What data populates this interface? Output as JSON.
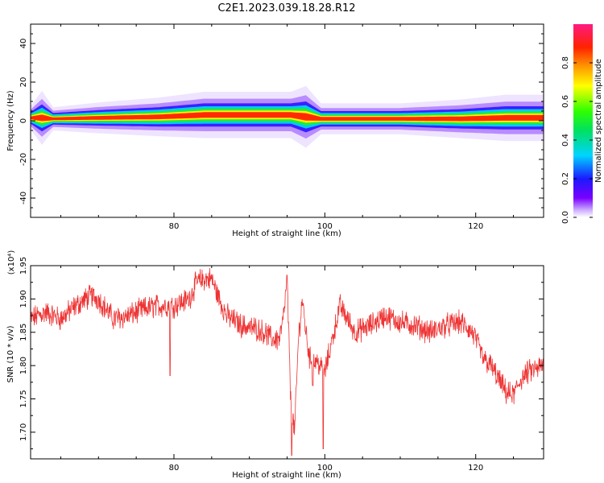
{
  "figure": {
    "title": "C2E1.2023.039.18.28.R12"
  },
  "colorbar": {
    "label": "Normalized spectral amplitude",
    "ticks": [
      "0.0",
      "0.2",
      "0.4",
      "0.6",
      "0.8"
    ]
  },
  "colors": {
    "snr_line": "#ee3333",
    "frame": "#000000"
  },
  "chart_data": [
    {
      "type": "heatmap",
      "title": "C2E1.2023.039.18.28.R12",
      "xlabel": "Height of straight line (km)",
      "ylabel": "Frequency (Hz)",
      "xlim": [
        61,
        129
      ],
      "ylim": [
        -50,
        50
      ],
      "x_ticks": [
        80,
        100,
        120
      ],
      "y_ticks": [
        -40,
        -20,
        0,
        20,
        40
      ],
      "colorbar_range": [
        0.0,
        1.0
      ],
      "ridge": [
        {
          "x": 61,
          "f": 1.5,
          "w": 3
        },
        {
          "x": 62.5,
          "f": 1.5,
          "w": 7
        },
        {
          "x": 64,
          "f": 1.0,
          "w": 3
        },
        {
          "x": 70,
          "f": 1.5,
          "w": 4
        },
        {
          "x": 78,
          "f": 2.0,
          "w": 5
        },
        {
          "x": 84,
          "f": 3.0,
          "w": 6
        },
        {
          "x": 90,
          "f": 3.0,
          "w": 6
        },
        {
          "x": 95.5,
          "f": 3.0,
          "w": 6
        },
        {
          "x": 97.5,
          "f": 2.0,
          "w": 8
        },
        {
          "x": 99.5,
          "f": 1.0,
          "w": 4
        },
        {
          "x": 110,
          "f": 1.0,
          "w": 4
        },
        {
          "x": 118,
          "f": 1.0,
          "w": 5
        },
        {
          "x": 124,
          "f": 1.5,
          "w": 6
        },
        {
          "x": 129,
          "f": 1.5,
          "w": 6
        }
      ]
    },
    {
      "type": "line",
      "xlabel": "Height of straight line (km)",
      "ylabel": "SNR (10 * v/v)",
      "y_multiplier": "(x10⁴)",
      "xlim": [
        61,
        129
      ],
      "ylim": [
        1.66,
        1.95
      ],
      "x_ticks": [
        80,
        100,
        120
      ],
      "y_ticks": [
        "1.70",
        "1.75",
        "1.80",
        "1.85",
        "1.90",
        "1.95"
      ],
      "series": [
        {
          "x": [
            61,
            63,
            65,
            67,
            69,
            70,
            72,
            74,
            76,
            78,
            79.5,
            80,
            82,
            83,
            84,
            85,
            86,
            87,
            89,
            91,
            92,
            93,
            94,
            94.5,
            95,
            95.5,
            96,
            96.5,
            97,
            97.5,
            98,
            99,
            100,
            101,
            102,
            104,
            106,
            108,
            110,
            112,
            114,
            116,
            118,
            119.5,
            120,
            121,
            122,
            123,
            124,
            125,
            126,
            127,
            128,
            129
          ],
          "y": [
            1.87,
            1.88,
            1.87,
            1.89,
            1.905,
            1.9,
            1.87,
            1.875,
            1.885,
            1.89,
            1.89,
            1.89,
            1.9,
            1.925,
            1.93,
            1.93,
            1.9,
            1.875,
            1.86,
            1.855,
            1.85,
            1.84,
            1.84,
            1.87,
            1.93,
            1.74,
            1.7,
            1.84,
            1.9,
            1.85,
            1.81,
            1.805,
            1.79,
            1.84,
            1.89,
            1.85,
            1.86,
            1.875,
            1.865,
            1.86,
            1.85,
            1.86,
            1.865,
            1.85,
            1.84,
            1.81,
            1.8,
            1.78,
            1.76,
            1.755,
            1.78,
            1.79,
            1.795,
            1.8
          ]
        }
      ],
      "spikes": [
        {
          "x": 79.5,
          "y": 1.785
        },
        {
          "x": 95.6,
          "y": 1.665
        },
        {
          "x": 99.8,
          "y": 1.675
        },
        {
          "x": 98.4,
          "y": 1.77
        }
      ]
    }
  ]
}
